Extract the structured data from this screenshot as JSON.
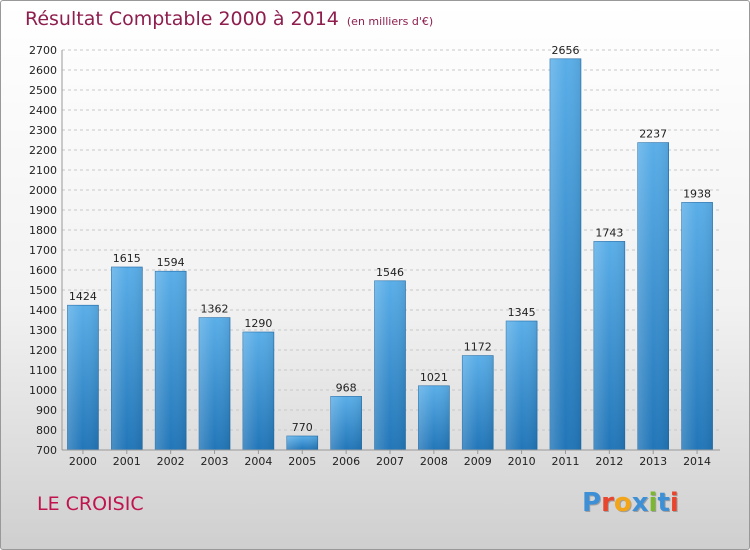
{
  "header": {
    "title": "Résultat Comptable 2000 à 2014",
    "subtitle": "(en milliers d'€)"
  },
  "footer": {
    "commune": "LE CROISIC",
    "logo": [
      "P",
      "r",
      "o",
      "x",
      "i",
      "t",
      "i"
    ]
  },
  "colors": {
    "title": "#8e1e4d",
    "commune": "#c0134f",
    "bar_top": "#5aaee8",
    "bar_bottom": "#2276b8",
    "logo": [
      "#3d8fd6",
      "#e8452e",
      "#f2a518",
      "#3d8fd6",
      "#7cb82f",
      "#3d8fd6",
      "#e8452e"
    ]
  },
  "chart_data": {
    "type": "bar",
    "categories": [
      "2000",
      "2001",
      "2002",
      "2003",
      "2004",
      "2005",
      "2006",
      "2007",
      "2008",
      "2009",
      "2010",
      "2011",
      "2012",
      "2013",
      "2014"
    ],
    "values": [
      1424,
      1615,
      1594,
      1362,
      1290,
      770,
      968,
      1546,
      1021,
      1172,
      1345,
      2656,
      1743,
      2237,
      1938
    ],
    "ylim": [
      700,
      2700
    ],
    "yticks": [
      700,
      800,
      900,
      1000,
      1100,
      1200,
      1300,
      1400,
      1500,
      1600,
      1700,
      1800,
      1900,
      2000,
      2100,
      2200,
      2300,
      2400,
      2500,
      2600,
      2700
    ],
    "grid": true,
    "data_labels": true
  }
}
